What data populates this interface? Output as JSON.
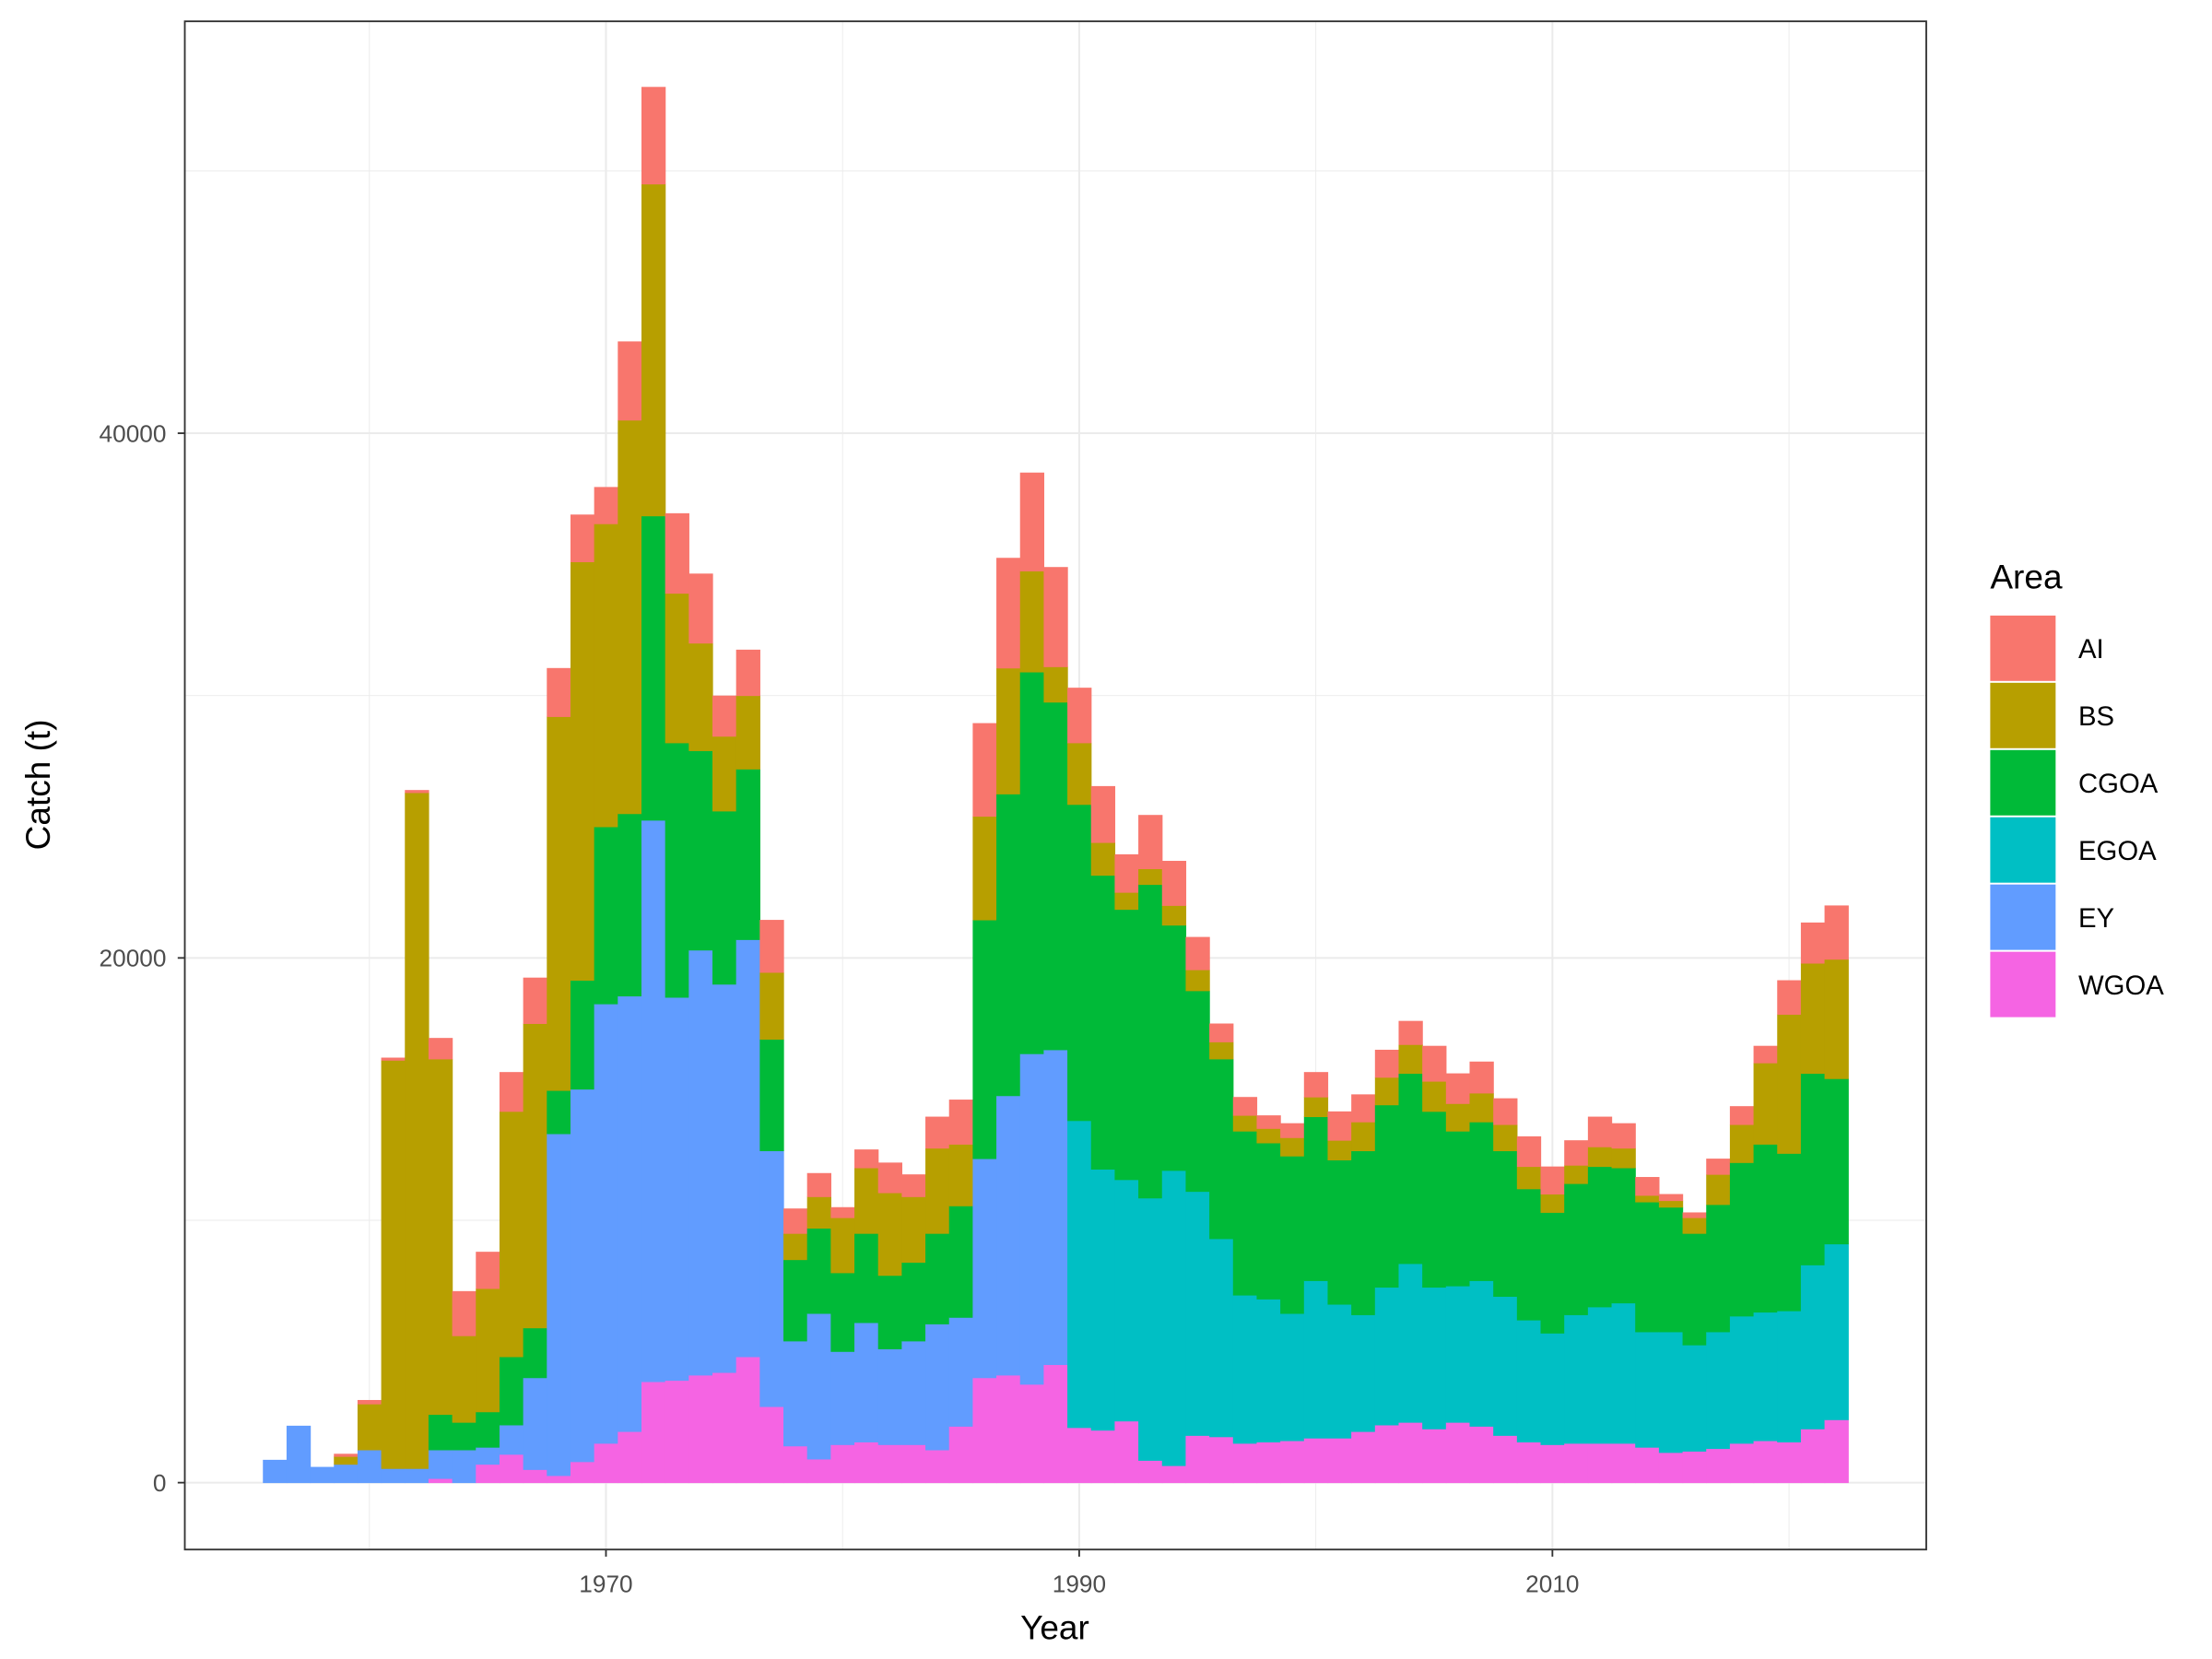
{
  "chart_data": {
    "type": "bar",
    "stacked": true,
    "title": "",
    "xlabel": "Year",
    "ylabel": "Catch (t)",
    "xlim": [
      1952.2,
      2025.8
    ],
    "ylim": [
      -2550,
      55700
    ],
    "x_ticks": [
      1970,
      1990,
      2010
    ],
    "x_tick_labels": [
      "1970",
      "1990",
      "2010"
    ],
    "y_ticks": [
      0,
      20000,
      40000
    ],
    "y_tick_labels": [
      "0",
      "20000",
      "40000"
    ],
    "grid": true,
    "legend": {
      "title": "Area",
      "placement": "right"
    },
    "x": [
      1956,
      1957,
      1958,
      1959,
      1960,
      1961,
      1962,
      1963,
      1964,
      1965,
      1966,
      1967,
      1968,
      1969,
      1970,
      1971,
      1972,
      1973,
      1974,
      1975,
      1976,
      1977,
      1978,
      1979,
      1980,
      1981,
      1982,
      1983,
      1984,
      1985,
      1986,
      1987,
      1988,
      1989,
      1990,
      1991,
      1992,
      1993,
      1994,
      1995,
      1996,
      1997,
      1998,
      1999,
      2000,
      2001,
      2002,
      2003,
      2004,
      2005,
      2006,
      2007,
      2008,
      2009,
      2010,
      2011,
      2012,
      2013,
      2014,
      2015,
      2016,
      2017,
      2018,
      2019,
      2020,
      2021,
      2022
    ],
    "stack_order_bottom_to_top": [
      "WGOA",
      "EY",
      "EGOA",
      "CGOA",
      "BS",
      "AI"
    ],
    "series": [
      {
        "name": "AI",
        "color": "#F8766D",
        "values": [
          0,
          0,
          0,
          100,
          150,
          100,
          100,
          800,
          1700,
          1400,
          1500,
          1750,
          1850,
          1800,
          1400,
          3000,
          3700,
          3050,
          2650,
          1550,
          1750,
          2000,
          950,
          900,
          400,
          700,
          1150,
          850,
          1200,
          1700,
          3550,
          4200,
          3750,
          3800,
          2100,
          2150,
          1450,
          2050,
          1700,
          1250,
          700,
          700,
          500,
          550,
          950,
          1100,
          1050,
          1050,
          900,
          1350,
          1150,
          1200,
          1000,
          1150,
          1050,
          950,
          1150,
          950,
          700,
          250,
          200,
          600,
          700,
          650,
          1300,
          1550,
          2050
        ]
      },
      {
        "name": "BS",
        "color": "#B79F00",
        "values": [
          0,
          0,
          0,
          300,
          1750,
          15560,
          25760,
          13550,
          3300,
          4700,
          9350,
          11600,
          14250,
          15950,
          11550,
          15000,
          12650,
          5700,
          4100,
          2850,
          2800,
          2550,
          1000,
          1200,
          2100,
          2500,
          3150,
          2500,
          3250,
          2350,
          3950,
          4800,
          3850,
          1350,
          2350,
          1250,
          650,
          600,
          750,
          800,
          650,
          600,
          550,
          700,
          750,
          750,
          1100,
          1050,
          1100,
          1150,
          1050,
          1100,
          1000,
          850,
          700,
          700,
          750,
          750,
          250,
          250,
          600,
          1150,
          1450,
          3100,
          5300,
          4200,
          4550
        ]
      },
      {
        "name": "CGOA",
        "color": "#00BA38",
        "values": [
          0,
          0,
          0,
          0,
          0,
          0,
          0,
          1350,
          1050,
          1350,
          2600,
          1900,
          1650,
          4150,
          6750,
          6950,
          11600,
          9700,
          7600,
          6600,
          6500,
          4250,
          3100,
          3250,
          3000,
          3400,
          2800,
          3000,
          3450,
          4250,
          9100,
          11500,
          14550,
          13250,
          12050,
          11200,
          10300,
          11950,
          9350,
          7650,
          6850,
          6250,
          5950,
          6000,
          6250,
          5500,
          6250,
          6950,
          7250,
          6700,
          5900,
          6050,
          5550,
          5000,
          4600,
          5000,
          5350,
          5150,
          4950,
          4750,
          4250,
          4850,
          5850,
          6400,
          6000,
          7300,
          6300
        ]
      },
      {
        "name": "EGOA",
        "color": "#00BFC4",
        "values": [
          0,
          0,
          0,
          0,
          0,
          0,
          0,
          0,
          0,
          0,
          0,
          0,
          0,
          0,
          0,
          0,
          0,
          0,
          0,
          0,
          0,
          0,
          0,
          0,
          0,
          0,
          0,
          0,
          0,
          0,
          0,
          0,
          0,
          0,
          11700,
          9950,
          9200,
          10000,
          11250,
          9300,
          7550,
          5650,
          5450,
          4850,
          6000,
          5100,
          4450,
          5250,
          6050,
          5400,
          5200,
          5550,
          5300,
          4650,
          4250,
          4900,
          5200,
          5350,
          4400,
          4600,
          4050,
          4450,
          4850,
          4900,
          5000,
          6250,
          6700
        ]
      },
      {
        "name": "EY",
        "color": "#619CFF",
        "values": [
          870,
          2170,
          600,
          700,
          1250,
          540,
          540,
          1090,
          1250,
          650,
          1120,
          3500,
          13030,
          14200,
          16750,
          16600,
          21400,
          14600,
          16200,
          14800,
          15900,
          9750,
          4000,
          5550,
          3550,
          4550,
          3650,
          3950,
          4800,
          4150,
          8350,
          10650,
          12600,
          12000,
          0,
          0,
          0,
          0,
          0,
          0,
          0,
          0,
          0,
          0,
          0,
          0,
          0,
          0,
          0,
          0,
          0,
          0,
          0,
          0,
          0,
          0,
          0,
          0,
          0,
          0,
          0,
          0,
          0,
          0,
          0,
          0,
          0
        ]
      },
      {
        "name": "WGOA",
        "color": "#F564E3",
        "values": [
          0,
          0,
          0,
          0,
          0,
          0,
          0,
          160,
          0,
          700,
          1080,
          500,
          270,
          800,
          1500,
          1950,
          3850,
          3900,
          4100,
          4200,
          4800,
          2900,
          1400,
          900,
          1450,
          1550,
          1450,
          1450,
          1250,
          2150,
          4000,
          4100,
          3750,
          4500,
          2100,
          2000,
          2350,
          850,
          650,
          1800,
          1750,
          1500,
          1550,
          1600,
          1700,
          1700,
          1950,
          2200,
          2300,
          2050,
          2300,
          2150,
          1800,
          1550,
          1450,
          1500,
          1500,
          1500,
          1350,
          1150,
          1200,
          1300,
          1500,
          1600,
          1550,
          2050,
          2400
        ]
      }
    ]
  }
}
